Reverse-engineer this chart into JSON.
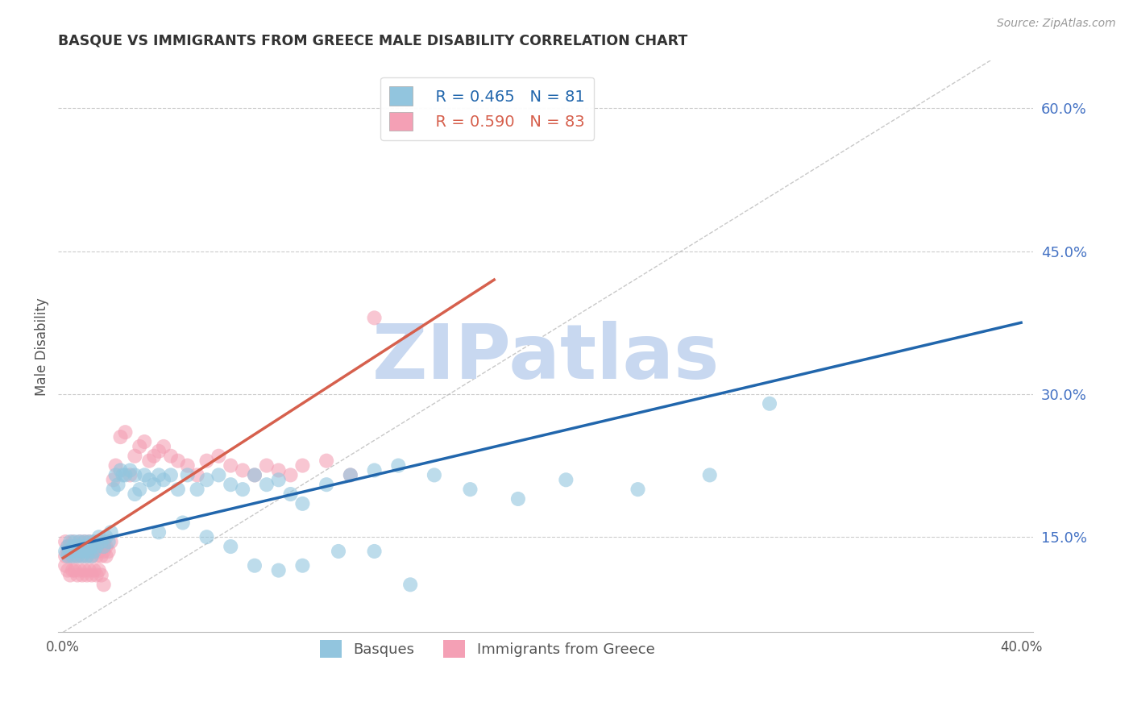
{
  "title": "BASQUE VS IMMIGRANTS FROM GREECE MALE DISABILITY CORRELATION CHART",
  "source": "Source: ZipAtlas.com",
  "ylabel": "Male Disability",
  "xlim": [
    -0.002,
    0.405
  ],
  "ylim": [
    0.05,
    0.65
  ],
  "xticks": [
    0.0,
    0.05,
    0.1,
    0.15,
    0.2,
    0.25,
    0.3,
    0.35,
    0.4
  ],
  "ytick_positions": [
    0.15,
    0.3,
    0.45,
    0.6
  ],
  "legend1_r": "R = 0.465",
  "legend1_n": "N = 81",
  "legend2_r": "R = 0.590",
  "legend2_n": "N = 83",
  "basque_color": "#92c5de",
  "greece_color": "#f4a0b5",
  "trend_blue": "#2166ac",
  "trend_pink": "#d6604d",
  "watermark": "ZIPatlas",
  "watermark_color": "#c8d8f0",
  "basque_x": [
    0.001,
    0.002,
    0.002,
    0.003,
    0.003,
    0.004,
    0.004,
    0.005,
    0.005,
    0.006,
    0.006,
    0.007,
    0.007,
    0.008,
    0.008,
    0.009,
    0.009,
    0.01,
    0.01,
    0.011,
    0.011,
    0.012,
    0.012,
    0.013,
    0.013,
    0.014,
    0.015,
    0.016,
    0.017,
    0.018,
    0.019,
    0.02,
    0.021,
    0.022,
    0.023,
    0.024,
    0.025,
    0.026,
    0.028,
    0.03,
    0.032,
    0.034,
    0.036,
    0.038,
    0.04,
    0.042,
    0.045,
    0.048,
    0.052,
    0.056,
    0.06,
    0.065,
    0.07,
    0.075,
    0.08,
    0.085,
    0.09,
    0.095,
    0.1,
    0.11,
    0.12,
    0.13,
    0.14,
    0.155,
    0.17,
    0.19,
    0.21,
    0.24,
    0.27,
    0.295,
    0.03,
    0.04,
    0.05,
    0.06,
    0.07,
    0.08,
    0.09,
    0.1,
    0.115,
    0.13,
    0.145
  ],
  "basque_y": [
    0.135,
    0.13,
    0.14,
    0.135,
    0.145,
    0.13,
    0.14,
    0.135,
    0.145,
    0.13,
    0.14,
    0.135,
    0.145,
    0.13,
    0.14,
    0.135,
    0.145,
    0.13,
    0.14,
    0.135,
    0.145,
    0.13,
    0.14,
    0.135,
    0.145,
    0.14,
    0.15,
    0.145,
    0.14,
    0.15,
    0.145,
    0.155,
    0.2,
    0.215,
    0.205,
    0.22,
    0.215,
    0.215,
    0.22,
    0.215,
    0.2,
    0.215,
    0.21,
    0.205,
    0.215,
    0.21,
    0.215,
    0.2,
    0.215,
    0.2,
    0.21,
    0.215,
    0.205,
    0.2,
    0.215,
    0.205,
    0.21,
    0.195,
    0.185,
    0.205,
    0.215,
    0.22,
    0.225,
    0.215,
    0.2,
    0.19,
    0.21,
    0.2,
    0.215,
    0.29,
    0.195,
    0.155,
    0.165,
    0.15,
    0.14,
    0.12,
    0.115,
    0.12,
    0.135,
    0.135,
    0.1
  ],
  "greece_x": [
    0.001,
    0.001,
    0.002,
    0.002,
    0.003,
    0.003,
    0.004,
    0.004,
    0.005,
    0.005,
    0.006,
    0.006,
    0.007,
    0.007,
    0.008,
    0.008,
    0.009,
    0.009,
    0.01,
    0.01,
    0.011,
    0.011,
    0.012,
    0.012,
    0.013,
    0.013,
    0.014,
    0.014,
    0.015,
    0.015,
    0.016,
    0.016,
    0.017,
    0.017,
    0.018,
    0.018,
    0.019,
    0.02,
    0.021,
    0.022,
    0.024,
    0.026,
    0.028,
    0.03,
    0.032,
    0.034,
    0.036,
    0.038,
    0.04,
    0.042,
    0.045,
    0.048,
    0.052,
    0.056,
    0.06,
    0.065,
    0.07,
    0.075,
    0.08,
    0.085,
    0.09,
    0.095,
    0.1,
    0.11,
    0.12,
    0.13,
    0.001,
    0.002,
    0.003,
    0.004,
    0.005,
    0.006,
    0.007,
    0.008,
    0.009,
    0.01,
    0.011,
    0.012,
    0.013,
    0.014,
    0.015,
    0.016,
    0.017
  ],
  "greece_y": [
    0.13,
    0.145,
    0.135,
    0.14,
    0.13,
    0.14,
    0.135,
    0.145,
    0.13,
    0.14,
    0.13,
    0.14,
    0.135,
    0.145,
    0.13,
    0.14,
    0.135,
    0.145,
    0.13,
    0.14,
    0.135,
    0.145,
    0.13,
    0.14,
    0.135,
    0.145,
    0.13,
    0.14,
    0.135,
    0.145,
    0.13,
    0.14,
    0.135,
    0.145,
    0.13,
    0.14,
    0.135,
    0.145,
    0.21,
    0.225,
    0.255,
    0.26,
    0.215,
    0.235,
    0.245,
    0.25,
    0.23,
    0.235,
    0.24,
    0.245,
    0.235,
    0.23,
    0.225,
    0.215,
    0.23,
    0.235,
    0.225,
    0.22,
    0.215,
    0.225,
    0.22,
    0.215,
    0.225,
    0.23,
    0.215,
    0.38,
    0.12,
    0.115,
    0.11,
    0.115,
    0.115,
    0.11,
    0.115,
    0.11,
    0.115,
    0.11,
    0.115,
    0.11,
    0.115,
    0.11,
    0.115,
    0.11,
    0.1
  ],
  "blue_trend_x0": 0.0,
  "blue_trend_y0": 0.138,
  "blue_trend_x1": 0.4,
  "blue_trend_y1": 0.375,
  "pink_trend_x0": 0.0,
  "pink_trend_y0": 0.128,
  "pink_trend_x1": 0.18,
  "pink_trend_y1": 0.42,
  "ref_line_slope": 1.55
}
